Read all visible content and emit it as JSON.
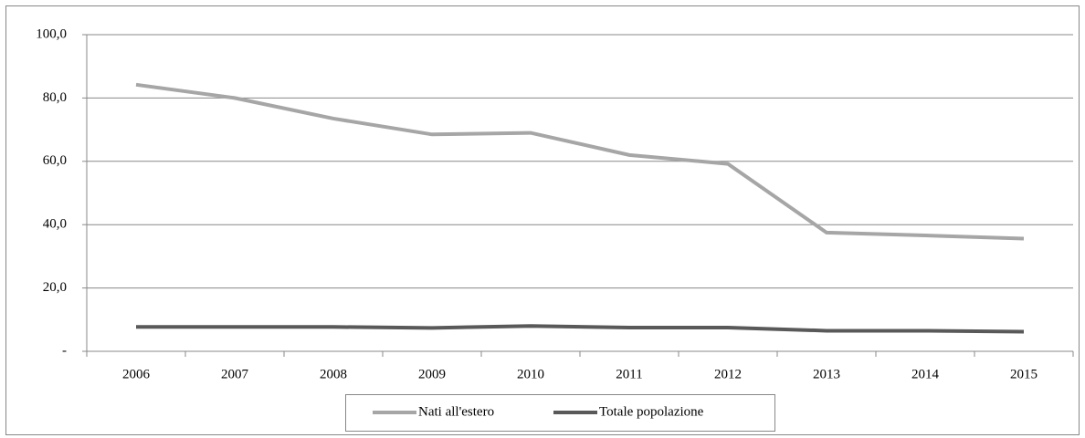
{
  "chart_data": {
    "type": "line",
    "categories": [
      "2006",
      "2007",
      "2008",
      "2009",
      "2010",
      "2011",
      "2012",
      "2013",
      "2014",
      "2015"
    ],
    "series": [
      {
        "name": "Nati all'estero",
        "color": "#a6a6a6",
        "values": [
          84.2,
          80.0,
          73.5,
          68.5,
          69.0,
          62.0,
          59.2,
          37.5,
          36.6,
          35.6
        ]
      },
      {
        "name": "Totale popolazione",
        "color": "#595959",
        "values": [
          7.7,
          7.7,
          7.7,
          7.4,
          8.0,
          7.5,
          7.5,
          6.5,
          6.5,
          6.2
        ]
      }
    ],
    "ylim": [
      0,
      100
    ],
    "yticks": [
      {
        "value": 0,
        "label": "-"
      },
      {
        "value": 20,
        "label": "20,0"
      },
      {
        "value": 40,
        "label": "40,0"
      },
      {
        "value": 60,
        "label": "60,0"
      },
      {
        "value": 80,
        "label": "80,0"
      },
      {
        "value": 100,
        "label": "100,0"
      }
    ],
    "grid": true,
    "legend": "bottom"
  }
}
